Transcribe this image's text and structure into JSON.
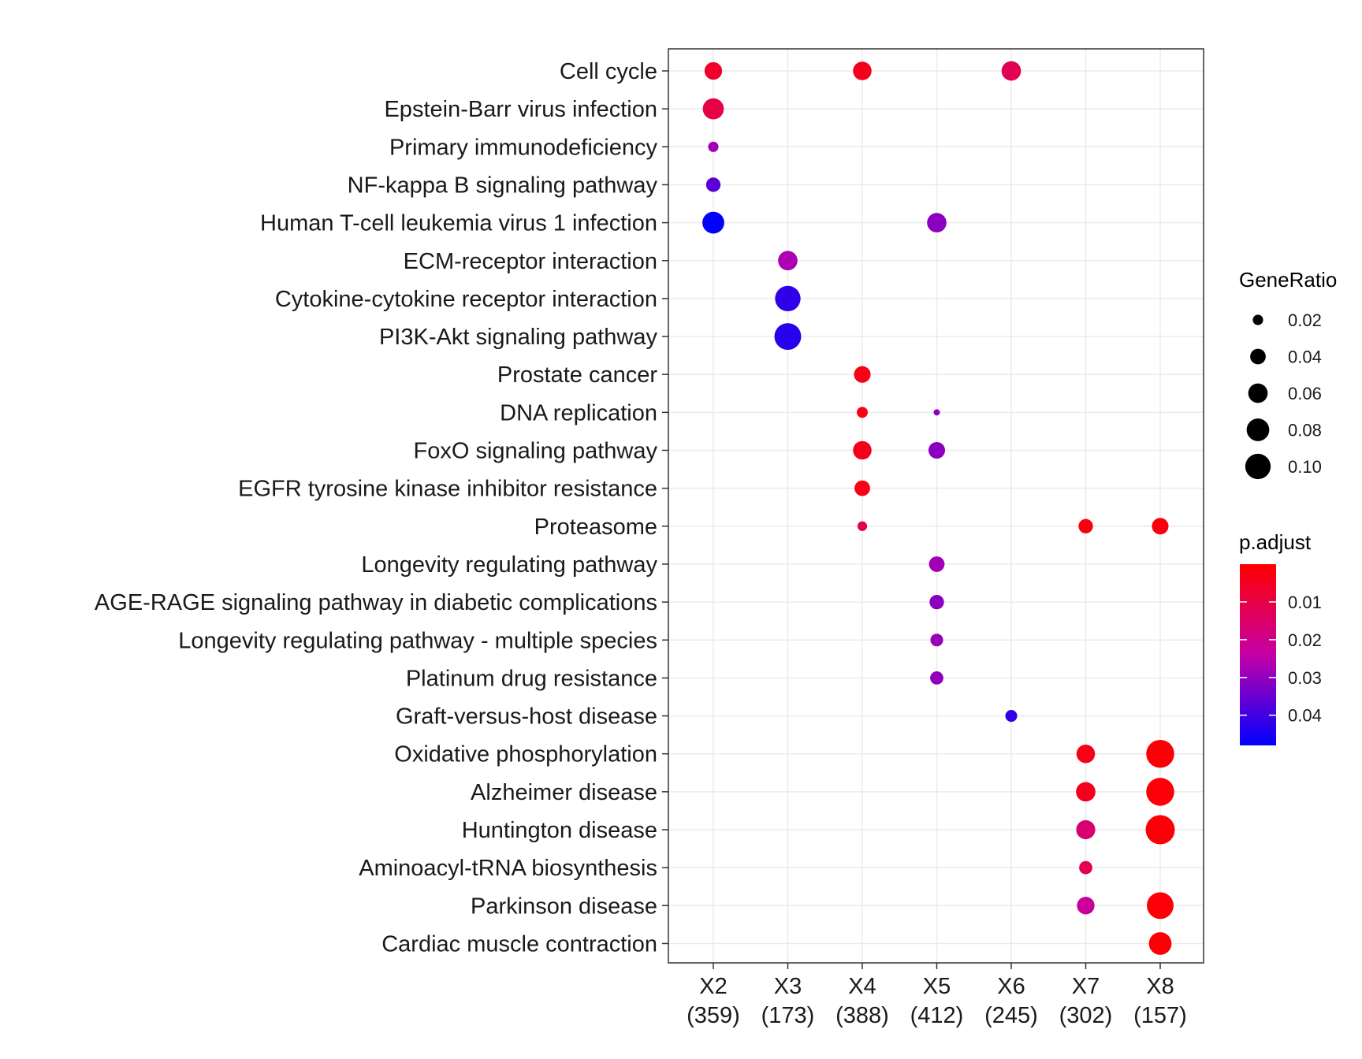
{
  "chart_data": {
    "type": "scatter",
    "title": "",
    "xlabel": "",
    "ylabel": "",
    "categories_x": [
      {
        "name": "X2",
        "count": "(359)"
      },
      {
        "name": "X3",
        "count": "(173)"
      },
      {
        "name": "X4",
        "count": "(388)"
      },
      {
        "name": "X5",
        "count": "(412)"
      },
      {
        "name": "X6",
        "count": "(245)"
      },
      {
        "name": "X7",
        "count": "(302)"
      },
      {
        "name": "X8",
        "count": "(157)"
      }
    ],
    "categories_y": [
      "Cell cycle",
      "Epstein-Barr virus infection",
      "Primary immunodeficiency",
      "NF-kappa B signaling pathway",
      "Human T-cell leukemia virus 1 infection",
      "ECM-receptor interaction",
      "Cytokine-cytokine receptor interaction",
      "PI3K-Akt signaling pathway",
      "Prostate cancer",
      "DNA replication",
      "FoxO signaling pathway",
      "EGFR tyrosine kinase inhibitor resistance",
      "Proteasome",
      "Longevity regulating pathway",
      "AGE-RAGE signaling pathway in diabetic complications",
      "Longevity regulating pathway - multiple species",
      "Platinum drug resistance",
      "Graft-versus-host disease",
      "Oxidative phosphorylation",
      "Alzheimer disease",
      "Huntington disease",
      "Aminoacyl-tRNA biosynthesis",
      "Parkinson disease",
      "Cardiac muscle contraction"
    ],
    "points": [
      {
        "x": "X2",
        "y": "Cell cycle",
        "gene_ratio": 0.05,
        "p_adjust": 0.006
      },
      {
        "x": "X4",
        "y": "Cell cycle",
        "gene_ratio": 0.055,
        "p_adjust": 0.004
      },
      {
        "x": "X6",
        "y": "Cell cycle",
        "gene_ratio": 0.06,
        "p_adjust": 0.012
      },
      {
        "x": "X2",
        "y": "Epstein-Barr virus infection",
        "gene_ratio": 0.07,
        "p_adjust": 0.01
      },
      {
        "x": "X2",
        "y": "Primary immunodeficiency",
        "gene_ratio": 0.02,
        "p_adjust": 0.028
      },
      {
        "x": "X2",
        "y": "NF-kappa B signaling pathway",
        "gene_ratio": 0.035,
        "p_adjust": 0.037
      },
      {
        "x": "X2",
        "y": "Human T-cell leukemia virus 1 infection",
        "gene_ratio": 0.075,
        "p_adjust": 0.048
      },
      {
        "x": "X5",
        "y": "Human T-cell leukemia virus 1 infection",
        "gene_ratio": 0.06,
        "p_adjust": 0.031
      },
      {
        "x": "X3",
        "y": "ECM-receptor interaction",
        "gene_ratio": 0.06,
        "p_adjust": 0.027
      },
      {
        "x": "X3",
        "y": "Cytokine-cytokine receptor interaction",
        "gene_ratio": 0.1,
        "p_adjust": 0.042
      },
      {
        "x": "X3",
        "y": "PI3K-Akt signaling pathway",
        "gene_ratio": 0.11,
        "p_adjust": 0.043
      },
      {
        "x": "X4",
        "y": "Prostate cancer",
        "gene_ratio": 0.045,
        "p_adjust": 0.003
      },
      {
        "x": "X4",
        "y": "DNA replication",
        "gene_ratio": 0.022,
        "p_adjust": 0.003
      },
      {
        "x": "X5",
        "y": "DNA replication",
        "gene_ratio": 0.01,
        "p_adjust": 0.031
      },
      {
        "x": "X4",
        "y": "FoxO signaling pathway",
        "gene_ratio": 0.055,
        "p_adjust": 0.004
      },
      {
        "x": "X5",
        "y": "FoxO signaling pathway",
        "gene_ratio": 0.045,
        "p_adjust": 0.031
      },
      {
        "x": "X4",
        "y": "EGFR tyrosine kinase inhibitor resistance",
        "gene_ratio": 0.04,
        "p_adjust": 0.003
      },
      {
        "x": "X4",
        "y": "Proteasome",
        "gene_ratio": 0.018,
        "p_adjust": 0.012
      },
      {
        "x": "X7",
        "y": "Proteasome",
        "gene_ratio": 0.035,
        "p_adjust": 0.002
      },
      {
        "x": "X8",
        "y": "Proteasome",
        "gene_ratio": 0.045,
        "p_adjust": 0.002
      },
      {
        "x": "X5",
        "y": "Longevity regulating pathway",
        "gene_ratio": 0.04,
        "p_adjust": 0.028
      },
      {
        "x": "X5",
        "y": "AGE-RAGE signaling pathway in diabetic complications",
        "gene_ratio": 0.035,
        "p_adjust": 0.031
      },
      {
        "x": "X5",
        "y": "Longevity regulating pathway - multiple species",
        "gene_ratio": 0.028,
        "p_adjust": 0.029
      },
      {
        "x": "X5",
        "y": "Platinum drug resistance",
        "gene_ratio": 0.03,
        "p_adjust": 0.03
      },
      {
        "x": "X6",
        "y": "Graft-versus-host disease",
        "gene_ratio": 0.025,
        "p_adjust": 0.042
      },
      {
        "x": "X7",
        "y": "Oxidative phosphorylation",
        "gene_ratio": 0.055,
        "p_adjust": 0.003
      },
      {
        "x": "X8",
        "y": "Oxidative phosphorylation",
        "gene_ratio": 0.12,
        "p_adjust": 0.001
      },
      {
        "x": "X7",
        "y": "Alzheimer disease",
        "gene_ratio": 0.06,
        "p_adjust": 0.004
      },
      {
        "x": "X8",
        "y": "Alzheimer disease",
        "gene_ratio": 0.12,
        "p_adjust": 0.001
      },
      {
        "x": "X7",
        "y": "Huntington disease",
        "gene_ratio": 0.058,
        "p_adjust": 0.016
      },
      {
        "x": "X8",
        "y": "Huntington disease",
        "gene_ratio": 0.13,
        "p_adjust": 0.001
      },
      {
        "x": "X7",
        "y": "Aminoacyl-tRNA biosynthesis",
        "gene_ratio": 0.03,
        "p_adjust": 0.012
      },
      {
        "x": "X7",
        "y": "Parkinson disease",
        "gene_ratio": 0.05,
        "p_adjust": 0.022
      },
      {
        "x": "X8",
        "y": "Parkinson disease",
        "gene_ratio": 0.11,
        "p_adjust": 0.001
      },
      {
        "x": "X8",
        "y": "Cardiac muscle contraction",
        "gene_ratio": 0.08,
        "p_adjust": 0.001
      }
    ],
    "size_legend": {
      "title": "GeneRatio",
      "breaks": [
        0.02,
        0.04,
        0.06,
        0.08,
        0.1
      ],
      "labels": [
        "0.02",
        "0.04",
        "0.06",
        "0.08",
        "0.10"
      ]
    },
    "color_legend": {
      "title": "p.adjust",
      "range": [
        0,
        0.048
      ],
      "breaks": [
        0.01,
        0.02,
        0.03,
        0.04
      ],
      "labels": [
        "0.01",
        "0.02",
        "0.03",
        "0.04"
      ],
      "low_color": "#ff0000",
      "high_color": "#0000ff"
    },
    "grid": true,
    "legend_position": "right"
  }
}
